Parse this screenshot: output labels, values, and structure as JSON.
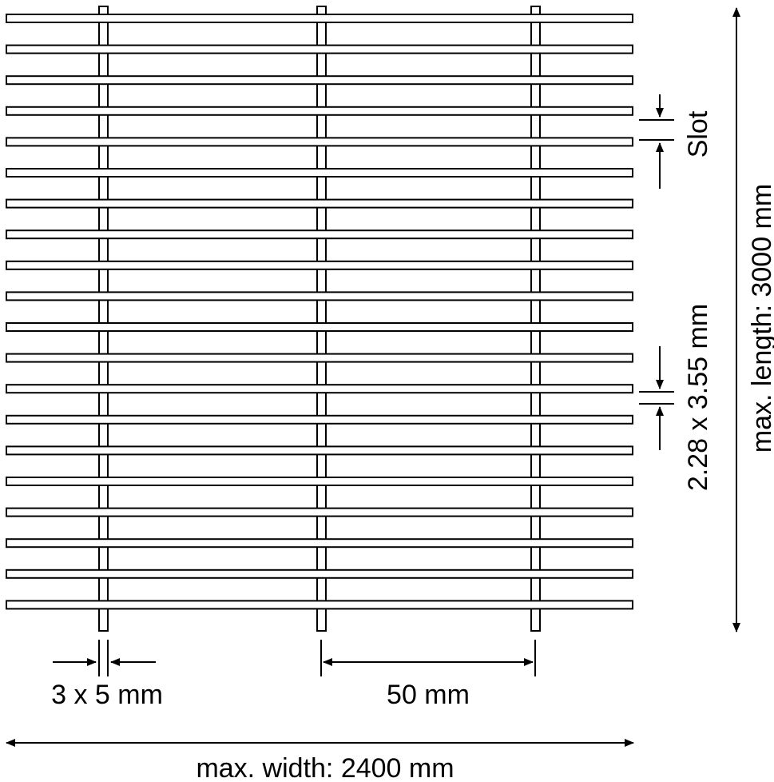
{
  "labels": {
    "slot": "Slot",
    "slot_size": "2.28 x 3.55 mm",
    "max_length": "max. length: 3000 mm",
    "rod_size": "3 x 5 mm",
    "spacing": "50 mm",
    "max_width": "max. width: 2400 mm"
  },
  "colors": {
    "line": "#000000",
    "background": "#ffffff"
  },
  "grid": {
    "horizontal_bars": 20,
    "vertical_rods": 3
  }
}
